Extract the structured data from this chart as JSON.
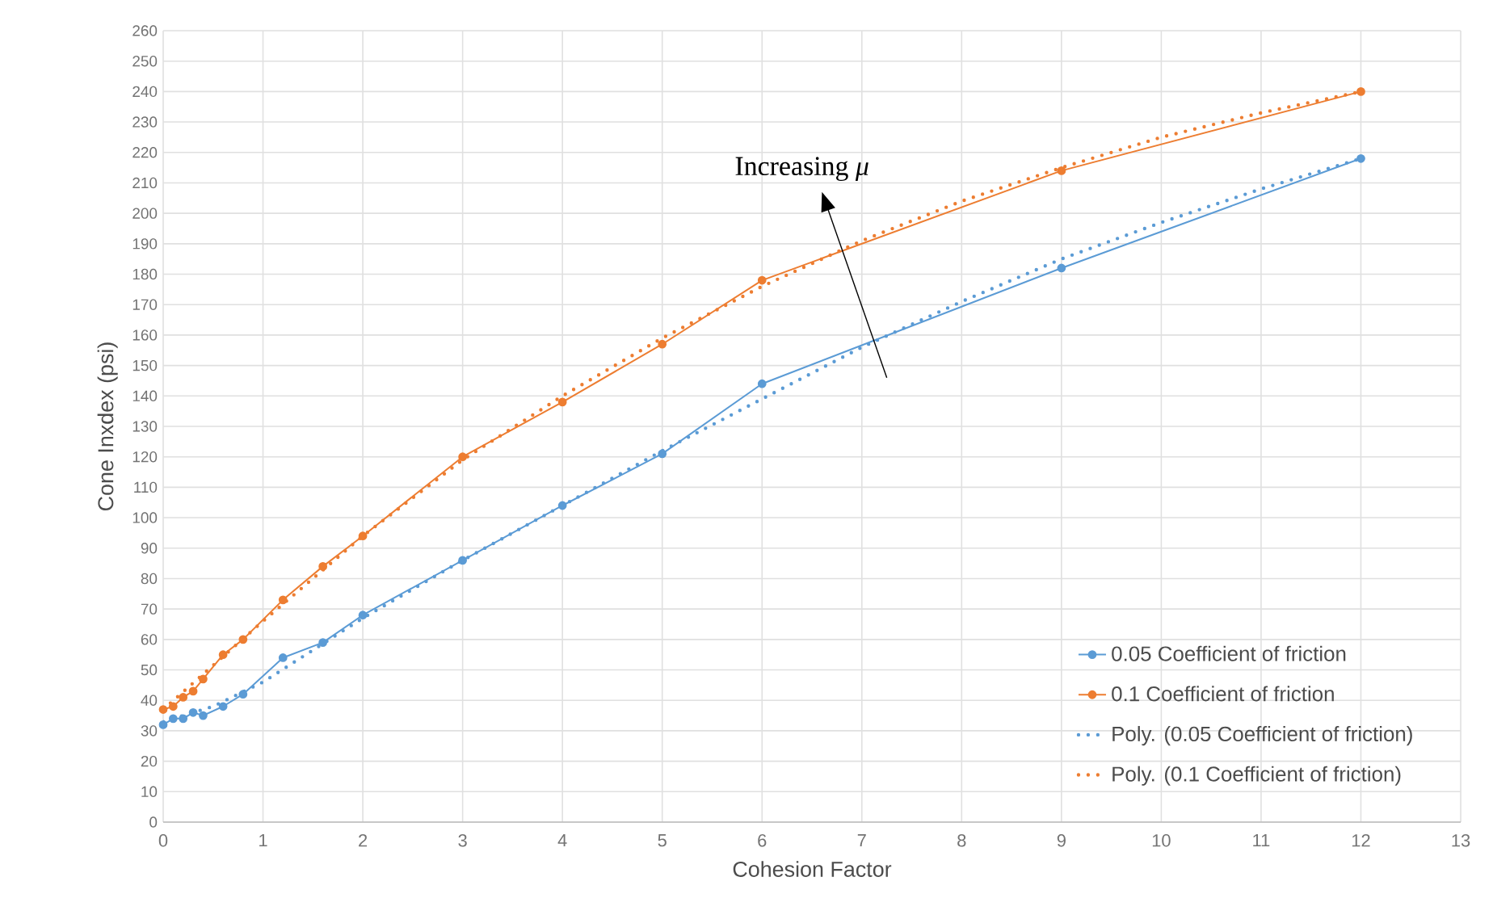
{
  "chart_data": {
    "type": "line",
    "xlabel": "Cohesion Factor",
    "ylabel": "Cone Inxdex (psi)",
    "annotations": [
      "Increasing *μ*"
    ],
    "xlim": [
      0,
      13
    ],
    "xticks": [
      0,
      1,
      2,
      3,
      4,
      5,
      6,
      7,
      8,
      9,
      10,
      11,
      12,
      13
    ],
    "ylim": [
      0,
      260
    ],
    "yticks": [
      0,
      10,
      20,
      30,
      40,
      50,
      60,
      70,
      80,
      90,
      100,
      110,
      120,
      130,
      140,
      150,
      160,
      170,
      180,
      190,
      200,
      210,
      220,
      230,
      240,
      250,
      260
    ],
    "grid": true,
    "legend": "bottom right",
    "series": [
      {
        "name": "0.05 Coefficient of friction",
        "color": "#5b9bd5",
        "marker": "circle",
        "line_style": "solid",
        "x": [
          0,
          0.1,
          0.2,
          0.3,
          0.4,
          0.6,
          0.8,
          1.2,
          1.6,
          2,
          3,
          4,
          5,
          6,
          9,
          12
        ],
        "values": [
          32,
          34,
          34,
          36,
          35,
          38,
          42,
          54,
          59,
          68,
          86,
          104,
          121,
          144,
          182,
          218
        ]
      },
      {
        "name": "0.1 Coefficient of friction",
        "color": "#ed7d31",
        "marker": "circle",
        "line_style": "solid",
        "x": [
          0,
          0.1,
          0.2,
          0.3,
          0.4,
          0.6,
          0.8,
          1.2,
          1.6,
          2,
          3,
          4,
          5,
          6,
          9,
          12
        ],
        "values": [
          37,
          38,
          41,
          43,
          47,
          55,
          60,
          73,
          84,
          94,
          120,
          138,
          157,
          178,
          214,
          240
        ]
      },
      {
        "name": "Poly. (0.05 Coefficient of friction)",
        "color": "#5b9bd5",
        "marker": "none",
        "line_style": "dotted",
        "x": [
          0,
          0.5,
          1,
          2,
          3,
          4,
          5,
          6,
          7,
          8,
          9,
          10,
          11,
          12
        ],
        "values": [
          33,
          38,
          46,
          67,
          86,
          104,
          122,
          139,
          156,
          171,
          185,
          197,
          208,
          218
        ]
      },
      {
        "name": "Poly. (0.1 Coefficient of friction)",
        "color": "#ed7d31",
        "marker": "none",
        "line_style": "dotted",
        "x": [
          0,
          1,
          2,
          3,
          4,
          5,
          6,
          7,
          8,
          9,
          10,
          11,
          12
        ],
        "values": [
          37,
          66,
          94,
          119,
          140,
          159,
          176,
          191,
          204,
          215,
          225,
          233,
          240
        ]
      }
    ]
  }
}
